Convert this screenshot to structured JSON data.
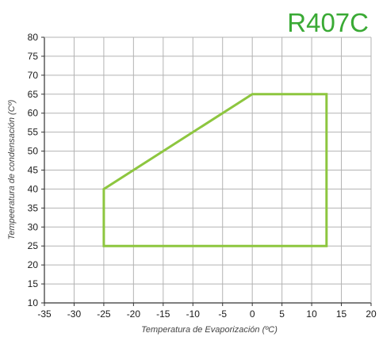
{
  "chart_data": {
    "type": "line",
    "title": "R407C",
    "xlabel": "Temperatura de Evaporización (ºC)",
    "ylabel": "Tempeeratura de condensación (Cº)",
    "xlim": [
      -35,
      20
    ],
    "ylim": [
      10,
      80
    ],
    "x_ticks": [
      "-35",
      "-30",
      "-25",
      "-20",
      "-15",
      "-10",
      "-5",
      "0",
      "5",
      "10",
      "15",
      "20"
    ],
    "y_ticks": [
      "10",
      "15",
      "20",
      "25",
      "30",
      "35",
      "40",
      "45",
      "50",
      "55",
      "60",
      "65",
      "70",
      "75",
      "80"
    ],
    "grid": true,
    "series": [
      {
        "closed": true,
        "points": [
          {
            "x": -25,
            "y": 25
          },
          {
            "x": -25,
            "y": 40
          },
          {
            "x": 0,
            "y": 65
          },
          {
            "x": 12.5,
            "y": 65
          },
          {
            "x": 12.5,
            "y": 25
          }
        ]
      }
    ]
  },
  "colors": {
    "envelope": "#8dc63f",
    "title": "#3aaa35",
    "grid": "#b3b3b3",
    "axis": "#333333"
  }
}
